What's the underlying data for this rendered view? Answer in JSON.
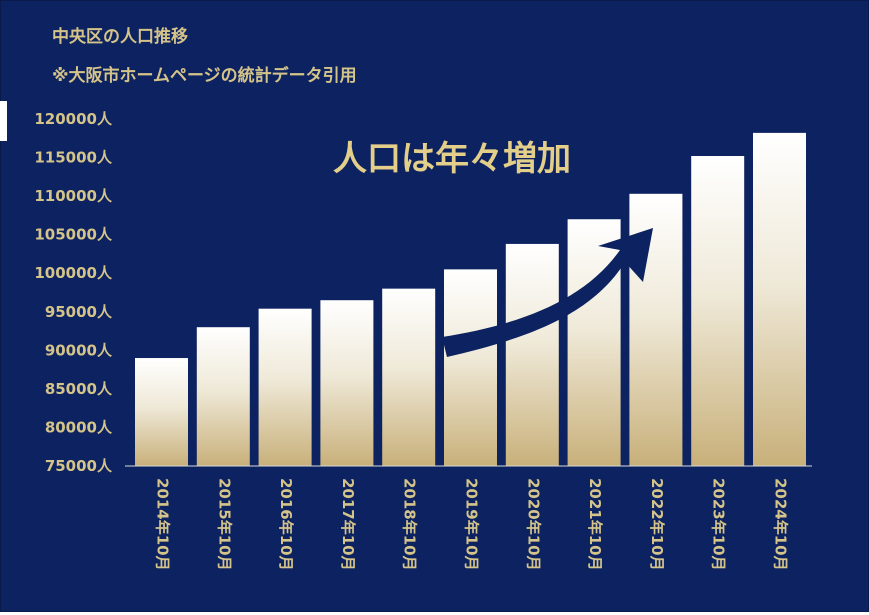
{
  "header": {
    "title": "中央区の人口推移",
    "source": "※大阪市ホームページの統計データ引用"
  },
  "colors": {
    "background": "#0d2260",
    "text_gold": "#d4c48a",
    "bar_top": "#ffffff",
    "bar_bottom": "#c8b07a",
    "arrow": "#0d2260"
  },
  "chart_data": {
    "type": "bar",
    "categories": [
      "2014年10月",
      "2015年10月",
      "2016年10月",
      "2017年10月",
      "2018年10月",
      "2019年10月",
      "2020年10月",
      "2021年10月",
      "2022年10月",
      "2023年10月",
      "2024年10月"
    ],
    "values": [
      89000,
      93000,
      95400,
      96500,
      98000,
      100500,
      103800,
      107000,
      110300,
      115200,
      118200
    ],
    "ylim": [
      75000,
      120000
    ],
    "ytick_step": 5000,
    "ytick_suffix": "人",
    "annotation": "人口は年々増加",
    "grid": false
  }
}
